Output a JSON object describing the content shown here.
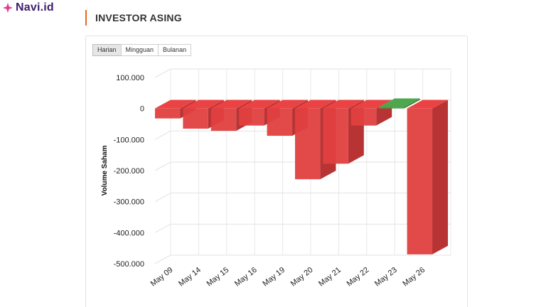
{
  "brand": {
    "name": "Navi.id",
    "color": "#e23d8a"
  },
  "section": {
    "title": "INVESTOR ASING",
    "accent": "#e8662a"
  },
  "tabs": [
    {
      "label": "Harian",
      "active": true
    },
    {
      "label": "Mingguan",
      "active": false
    },
    {
      "label": "Bulanan",
      "active": false
    }
  ],
  "colors": {
    "negative": "#e04040",
    "positive": "#4a9e4a"
  },
  "chart_data": {
    "type": "bar",
    "title": "",
    "xlabel": "",
    "ylabel": "Volume Saham",
    "ylim": [
      -500000,
      100000
    ],
    "yticks": [
      100000,
      0,
      -100000,
      -200000,
      -300000,
      -400000,
      -500000
    ],
    "ytick_labels": [
      "100.000",
      "0",
      "-100.000",
      "-200.000",
      "-300.000",
      "-400.000",
      "-500.000"
    ],
    "grid": true,
    "legend": "none",
    "categories": [
      "May 09",
      "May 14",
      "May 15",
      "May 16",
      "May 19",
      "May 20",
      "May 21",
      "May 22",
      "May 23",
      "May 26"
    ],
    "values": [
      -32000,
      -65000,
      -72000,
      -55000,
      -88000,
      -228000,
      -178000,
      -55000,
      5000,
      -470000
    ]
  }
}
